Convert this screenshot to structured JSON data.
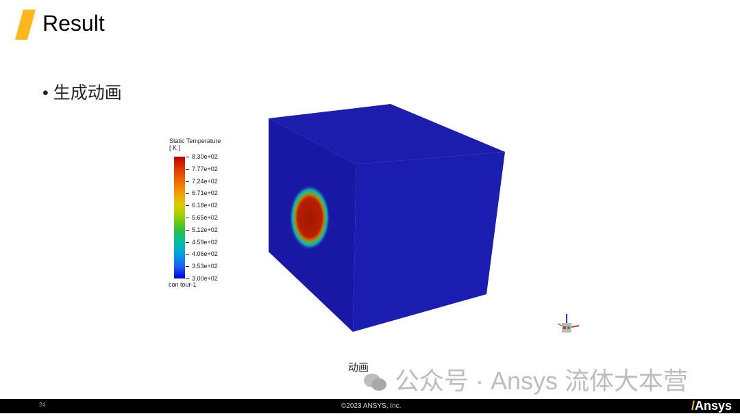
{
  "slide": {
    "title": "Result",
    "bullet": "生成动画",
    "caption": "动画",
    "page_number": "24",
    "copyright": "©2023 ANSYS,  Inc.",
    "logo": "Ansys",
    "accent_color": "#ffb71b"
  },
  "legend": {
    "title": "Static Temperature",
    "unit": "[ K ]",
    "labels": [
      "8.30e+02",
      "7.77e+02",
      "7.24e+02",
      "6.71e+02",
      "6.18e+02",
      "5.65e+02",
      "5.12e+02",
      "4.59e+02",
      "4.06e+02",
      "3.53e+02",
      "3.00e+02"
    ],
    "footer": "con tour-1"
  },
  "watermark": {
    "text": "公众号 · Ansys 流体大本营",
    "icon": "wechat-icon"
  }
}
